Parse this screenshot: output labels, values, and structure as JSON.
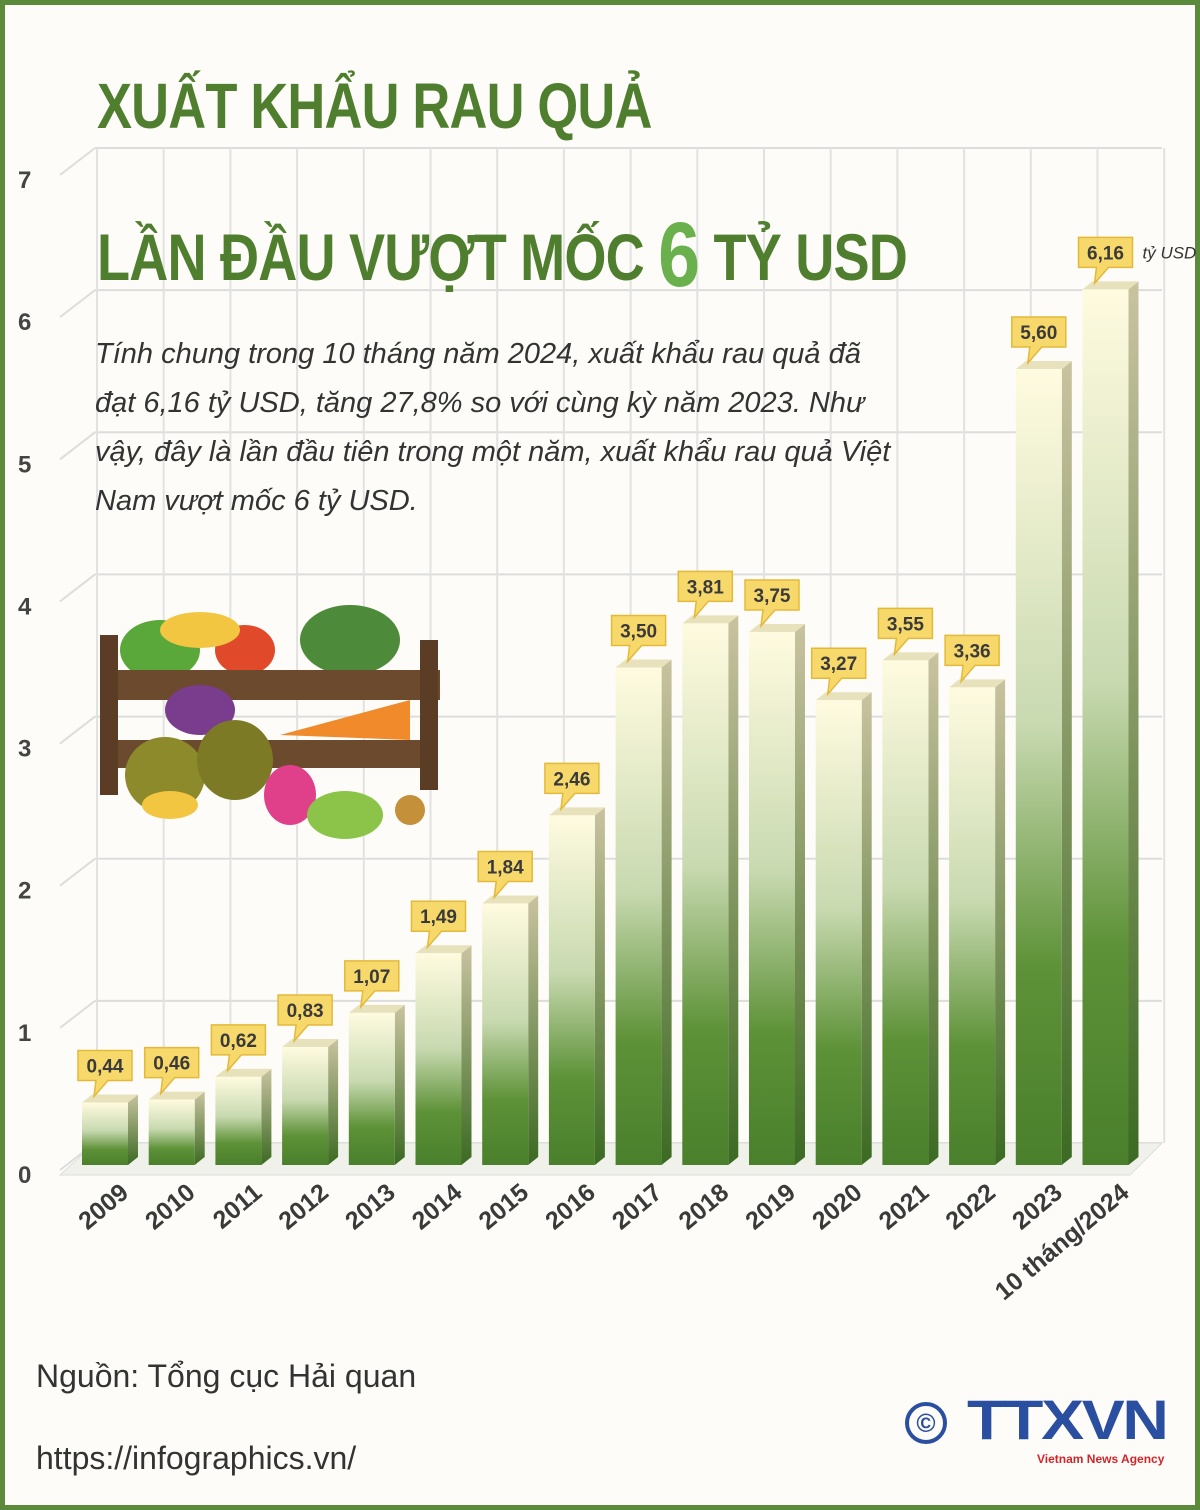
{
  "title": {
    "line1": "XUẤT KHẨU RAU QUẢ",
    "line2_pre": "LẦN ĐẦU VƯỢT MỐC",
    "line2_num": "6",
    "line2_post": "TỶ USD"
  },
  "description": "Tính chung trong 10 tháng năm 2024, xuất khẩu rau quả đã đạt 6,16 tỷ USD, tăng 27,8% so với cùng kỳ năm 2023. Như vậy, đây là lần đầu tiên trong một năm, xuất khẩu rau quả Việt Nam vượt mốc 6 tỷ USD.",
  "source": "Nguồn: Tổng cục Hải quan",
  "url": "https://infographics.vn/",
  "logo": {
    "copyright": "©",
    "name": "TTXVN",
    "tagline": "Vietnam News Agency"
  },
  "colors": {
    "accent": "#4f7f2e",
    "bar_dark": "#4a7f2c",
    "label_bg": "#f7d96b"
  },
  "chart_data": {
    "type": "bar",
    "unit": "tỷ USD",
    "categories": [
      "2009",
      "2010",
      "2011",
      "2012",
      "2013",
      "2014",
      "2015",
      "2016",
      "2017",
      "2018",
      "2019",
      "2020",
      "2021",
      "2022",
      "2023",
      "10 tháng/2024"
    ],
    "values": [
      0.44,
      0.46,
      0.62,
      0.83,
      1.07,
      1.49,
      1.84,
      2.46,
      3.5,
      3.81,
      3.75,
      3.27,
      3.55,
      3.36,
      5.6,
      6.16
    ],
    "value_labels": [
      "0,44",
      "0,46",
      "0,62",
      "0,83",
      "1,07",
      "1,49",
      "1,84",
      "2,46",
      "3,50",
      "3,81",
      "3,75",
      "3,27",
      "3,55",
      "3,36",
      "5,60",
      "6,16"
    ],
    "yticks": [
      "0",
      "1",
      "2",
      "3",
      "4",
      "5",
      "6",
      "7"
    ],
    "ylim": [
      0,
      7
    ],
    "grid": true
  }
}
